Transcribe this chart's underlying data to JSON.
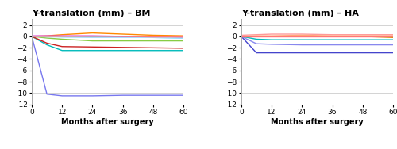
{
  "title_bm": "Y-translation (mm) – BM",
  "title_ha": "Y-translation (mm) – HA",
  "xlabel": "Months after surgery",
  "xlim": [
    0,
    60
  ],
  "ylim": [
    -12,
    3
  ],
  "yticks": [
    2,
    0,
    -2,
    -4,
    -6,
    -8,
    -10,
    -12
  ],
  "xticks": [
    0,
    12,
    24,
    36,
    48,
    60
  ],
  "bm_curves": [
    {
      "x": [
        0,
        6,
        12,
        24,
        36,
        48,
        60
      ],
      "y": [
        0,
        -10.2,
        -10.5,
        -10.5,
        -10.4,
        -10.4,
        -10.4
      ],
      "color": "#7777ee"
    },
    {
      "x": [
        0,
        6,
        12,
        60
      ],
      "y": [
        0,
        -1.5,
        -2.5,
        -2.5
      ],
      "color": "#00bbbb"
    },
    {
      "x": [
        0,
        6,
        12,
        60
      ],
      "y": [
        0,
        -1.2,
        -1.8,
        -2.1
      ],
      "color": "#cc2222"
    },
    {
      "x": [
        0,
        6,
        12,
        24,
        36,
        48,
        60
      ],
      "y": [
        0,
        -0.3,
        -0.5,
        -0.8,
        -0.8,
        -0.8,
        -0.8
      ],
      "color": "#88cc44"
    },
    {
      "x": [
        0,
        6,
        12,
        24,
        36,
        48,
        60
      ],
      "y": [
        0,
        0.1,
        0.3,
        0.6,
        0.4,
        0.2,
        0.1
      ],
      "color": "#ff8800"
    },
    {
      "x": [
        0,
        6,
        12,
        24,
        36,
        48,
        60
      ],
      "y": [
        0,
        0.0,
        -0.1,
        -0.1,
        -0.1,
        -0.2,
        -0.3
      ],
      "color": "#44ddff"
    },
    {
      "x": [
        0,
        6,
        12,
        24,
        36,
        48,
        60
      ],
      "y": [
        0,
        -0.1,
        -0.1,
        -0.2,
        -0.2,
        -0.2,
        -0.3
      ],
      "color": "#aaddff"
    },
    {
      "x": [
        0,
        6,
        12,
        24,
        36,
        48,
        60
      ],
      "y": [
        0.1,
        0.1,
        0.1,
        0.1,
        0.0,
        0.0,
        -0.1
      ],
      "color": "#dd44dd"
    },
    {
      "x": [
        0,
        6,
        12,
        24,
        36,
        48,
        60
      ],
      "y": [
        0,
        0.0,
        0.0,
        0.0,
        0.0,
        -0.1,
        -0.1
      ],
      "color": "#ff7777"
    }
  ],
  "ha_curves": [
    {
      "x": [
        0,
        6,
        12,
        24,
        36,
        48,
        60
      ],
      "y": [
        0,
        -2.9,
        -2.9,
        -2.9,
        -2.9,
        -2.9,
        -2.9
      ],
      "color": "#4444cc"
    },
    {
      "x": [
        0,
        6,
        12,
        24,
        36,
        48,
        60
      ],
      "y": [
        0,
        -1.3,
        -1.4,
        -1.5,
        -1.5,
        -1.5,
        -1.5
      ],
      "color": "#8888ee"
    },
    {
      "x": [
        0,
        6,
        12,
        24,
        36,
        48,
        60
      ],
      "y": [
        0,
        -0.5,
        -0.6,
        -0.6,
        -0.6,
        -0.6,
        -0.6
      ],
      "color": "#00bbbb"
    },
    {
      "x": [
        0,
        6,
        12,
        24,
        36,
        48,
        60
      ],
      "y": [
        0.2,
        0.3,
        0.4,
        0.4,
        0.3,
        0.3,
        0.3
      ],
      "color": "#ff9999"
    },
    {
      "x": [
        0,
        6,
        12,
        24,
        36,
        48,
        60
      ],
      "y": [
        0,
        0.1,
        0.1,
        0.2,
        0.1,
        0.1,
        0.1
      ],
      "color": "#ffaa77"
    },
    {
      "x": [
        0,
        6,
        12,
        24,
        36,
        48,
        60
      ],
      "y": [
        0,
        0.0,
        0.0,
        0.0,
        0.0,
        0.0,
        -0.2
      ],
      "color": "#cc9900"
    },
    {
      "x": [
        0,
        6,
        12,
        24,
        36,
        48,
        60
      ],
      "y": [
        0,
        0.0,
        0.0,
        0.0,
        0.0,
        0.0,
        0.0
      ],
      "color": "#ff7777"
    }
  ],
  "background_color": "#ffffff",
  "grid_color": "#cccccc",
  "line_width": 1.0,
  "title_fontsize": 8,
  "axis_fontsize": 7,
  "tick_fontsize": 6.5
}
